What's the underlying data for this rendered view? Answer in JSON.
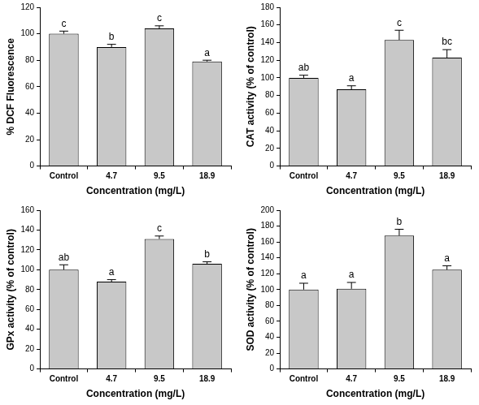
{
  "chart_data": [
    {
      "type": "bar",
      "x_label": "Concentration (mg/L)",
      "y_label": "% DCF Fluorescence",
      "categories": [
        "Control",
        "4.7",
        "9.5",
        "18.9"
      ],
      "values": [
        100,
        90,
        104,
        79
      ],
      "errors": [
        2,
        2,
        2,
        1
      ],
      "annotations": [
        "c",
        "b",
        "c",
        "a"
      ],
      "color": "#c8c8c8",
      "ylim": [
        0,
        120
      ],
      "yticks": [
        0,
        20,
        40,
        60,
        80,
        100,
        120
      ],
      "grid": false
    },
    {
      "type": "bar",
      "x_label": "Concentration (mg/L)",
      "y_label": "CAT activity (% of control)",
      "categories": [
        "Control",
        "4.7",
        "9.5",
        "18.9"
      ],
      "values": [
        100,
        87,
        143,
        123
      ],
      "errors": [
        3,
        4,
        11,
        9
      ],
      "annotations": [
        "ab",
        "a",
        "c",
        "bc"
      ],
      "color": "#c8c8c8",
      "ylim": [
        0,
        180
      ],
      "yticks": [
        0,
        20,
        40,
        60,
        80,
        100,
        120,
        140,
        160,
        180
      ],
      "grid": false
    },
    {
      "type": "bar",
      "x_label": "Concentration (mg/L)",
      "y_label": "GPx activity (% of control)",
      "categories": [
        "Control",
        "4.7",
        "9.5",
        "18.9"
      ],
      "values": [
        100,
        88,
        131,
        106
      ],
      "errors": [
        5,
        2,
        3,
        2
      ],
      "annotations": [
        "ab",
        "a",
        "c",
        "b"
      ],
      "color": "#c8c8c8",
      "ylim": [
        0,
        160
      ],
      "yticks": [
        0,
        20,
        40,
        60,
        80,
        100,
        120,
        140,
        160
      ],
      "grid": false
    },
    {
      "type": "bar",
      "x_label": "Concentration (mg/L)",
      "y_label": "SOD activity (% of control)",
      "categories": [
        "Control",
        "4.7",
        "9.5",
        "18.9"
      ],
      "values": [
        100,
        101,
        168,
        125
      ],
      "errors": [
        8,
        8,
        8,
        5
      ],
      "annotations": [
        "a",
        "a",
        "b",
        "a"
      ],
      "color": "#c8c8c8",
      "ylim": [
        0,
        200
      ],
      "yticks": [
        0,
        20,
        40,
        60,
        80,
        100,
        120,
        140,
        160,
        180,
        200
      ],
      "grid": false
    }
  ]
}
